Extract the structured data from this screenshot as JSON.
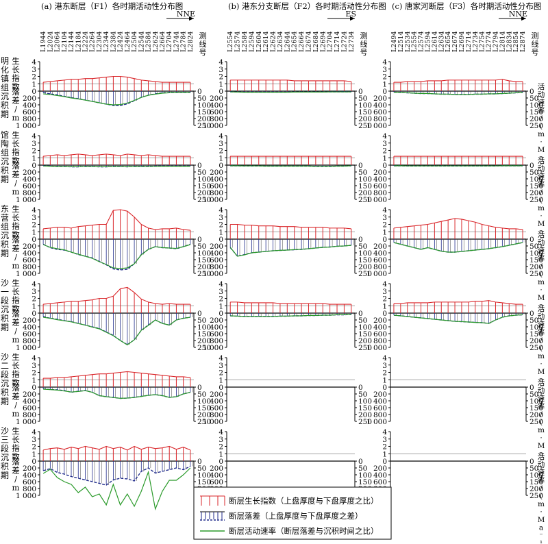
{
  "columns": [
    {
      "title": "(a) 港东断层（F1）各时期活动性分布图",
      "direction": "NNE",
      "lines": [
        "L1944",
        "L2024",
        "L2064",
        "L2104",
        "L2144",
        "L2184",
        "L2224",
        "L2264",
        "L2304",
        "L2344",
        "L2384",
        "L2424",
        "L2464",
        "L2504",
        "L2544",
        "L2584",
        "L2624",
        "L2664",
        "L2704",
        "L2744",
        "L2784",
        "L2824"
      ]
    },
    {
      "title": "(b) 港东分支断层（F2）各时期活动性分布图",
      "direction": "ES",
      "lines": [
        "L2554",
        "L2574",
        "L2584",
        "L2594",
        "L2604",
        "L2614",
        "L2624",
        "L2634",
        "L2644",
        "L2654",
        "L2664",
        "L2674",
        "L2684",
        "L2694",
        "L2704",
        "L2714",
        "L2724",
        "L2734"
      ]
    },
    {
      "title": "(c) 唐家河断层（F3）各时期活动性分布图",
      "direction": "NNE",
      "lines": [
        "L2494",
        "L2514",
        "L2534",
        "L2554",
        "L2574",
        "L2594",
        "L2614",
        "L2634",
        "L2654",
        "L2674",
        "L2694",
        "L2714",
        "L2734",
        "L2754",
        "L2774",
        "L2794",
        "L2814",
        "L2834",
        "L2854",
        "L2874"
      ]
    }
  ],
  "line_label": "测线号",
  "rate_label": "活动速率/(m·Ma⁻¹)",
  "growth_label": "生长指数",
  "throw_label": "落差/m",
  "growth_ticks": [
    "4",
    "3",
    "2",
    "1",
    "0"
  ],
  "throw_ticks": [
    "200",
    "400",
    "600",
    "800",
    "1 000"
  ],
  "rate_ticks": [
    "0",
    "50",
    "100",
    "150",
    "200",
    "250"
  ],
  "periods": [
    {
      "name": "明化镇组沉积期"
    },
    {
      "name": "馆陶组沉积期"
    },
    {
      "name": "东营组沉积期"
    },
    {
      "name": "沙一段沉积期"
    },
    {
      "name": "沙二段沉积期"
    },
    {
      "name": "沙三段沉积期"
    }
  ],
  "legend": [
    "断层生长指数（上盘厚度与下盘厚度之比）",
    "断层落差（上盘厚度与下盘厚度之差）",
    "断层活动速率（断层落差与沉积时间之比）"
  ],
  "colors": {
    "growth": "#d9262a",
    "throw": "#1f2a8a",
    "rate": "#2a9a2a",
    "axis": "#000000",
    "baseline": "#888888"
  },
  "chart_data": {
    "type": "line",
    "units": {
      "growth": "ratio",
      "throw": "m",
      "rate": "m·Ma⁻¹"
    },
    "ylim_growth": [
      0,
      4
    ],
    "ylim_throw": [
      0,
      1000
    ],
    "ylim_rate": [
      0,
      250
    ],
    "panels": [
      [
        {
          "growth": [
            1.2,
            1.3,
            1.4,
            1.5,
            1.6,
            1.6,
            1.7,
            1.7,
            1.8,
            1.9,
            2.0,
            2.0,
            1.9,
            1.7,
            1.5,
            1.4,
            1.3,
            1.2,
            1.2,
            1.2,
            1.2,
            1.2
          ],
          "throw": [
            40,
            80,
            110,
            150,
            190,
            220,
            260,
            300,
            340,
            380,
            420,
            420,
            370,
            280,
            180,
            120,
            80,
            50,
            40,
            40,
            40,
            40
          ],
          "rate": [
            20,
            25,
            32,
            40,
            50,
            57,
            66,
            75,
            85,
            95,
            100,
            98,
            88,
            68,
            46,
            30,
            22,
            15,
            12,
            10,
            10,
            10
          ]
        },
        {
          "growth": [
            1.2,
            1.3,
            1.4,
            1.3,
            1.4,
            1.5,
            1.4,
            1.3,
            1.4,
            1.5,
            1.4,
            1.3,
            1.5,
            1.4,
            1.3,
            1.4,
            1.3,
            1.2,
            1.2,
            1.2,
            1.2,
            1.2
          ],
          "throw": [
            20,
            30,
            40,
            40,
            50,
            50,
            40,
            40,
            50,
            50,
            40,
            40,
            50,
            40,
            40,
            40,
            30,
            30,
            30,
            30,
            30,
            30
          ],
          "rate": [
            6,
            8,
            10,
            11,
            12,
            12,
            11,
            11,
            12,
            12,
            11,
            11,
            12,
            11,
            11,
            11,
            9,
            8,
            8,
            8,
            8,
            8
          ]
        },
        {
          "growth": [
            1.4,
            1.5,
            1.6,
            1.6,
            1.5,
            1.7,
            1.8,
            1.9,
            2.0,
            2.0,
            3.9,
            4.0,
            3.8,
            3.0,
            2.0,
            1.5,
            1.3,
            1.4,
            1.4,
            1.5,
            1.3,
            1.2
          ],
          "throw": [
            150,
            250,
            300,
            320,
            380,
            450,
            500,
            550,
            650,
            750,
            870,
            900,
            880,
            720,
            450,
            300,
            220,
            250,
            260,
            280,
            220,
            150
          ],
          "rate": [
            40,
            60,
            70,
            78,
            95,
            110,
            125,
            140,
            165,
            185,
            210,
            215,
            210,
            180,
            115,
            75,
            55,
            62,
            65,
            68,
            55,
            40
          ]
        },
        {
          "growth": [
            1.2,
            1.3,
            1.4,
            1.5,
            1.6,
            1.6,
            1.7,
            1.8,
            2.0,
            2.0,
            2.3,
            3.3,
            3.5,
            2.8,
            1.9,
            1.5,
            1.3,
            1.2,
            1.3,
            1.2,
            1.2,
            1.2
          ],
          "throw": [
            100,
            150,
            180,
            220,
            250,
            300,
            350,
            400,
            450,
            550,
            650,
            800,
            920,
            780,
            500,
            350,
            200,
            300,
            350,
            200,
            150,
            120
          ],
          "rate": [
            30,
            38,
            48,
            56,
            64,
            76,
            88,
            102,
            115,
            140,
            165,
            200,
            232,
            195,
            125,
            90,
            50,
            75,
            88,
            50,
            38,
            30
          ]
        },
        {
          "growth": [
            1.2,
            1.2,
            1.3,
            1.3,
            1.4,
            1.5,
            1.6,
            1.7,
            1.8,
            1.8,
            1.9,
            2.0,
            2.1,
            2.0,
            1.9,
            1.8,
            1.7,
            1.6,
            1.5,
            1.4,
            1.4,
            1.3
          ],
          "throw": [
            50,
            70,
            80,
            100,
            150,
            120,
            100,
            150,
            250,
            280,
            300,
            330,
            320,
            300,
            270,
            240,
            220,
            250,
            300,
            280,
            200,
            150
          ],
          "rate": [
            15,
            18,
            22,
            28,
            36,
            32,
            26,
            38,
            62,
            70,
            76,
            82,
            80,
            76,
            68,
            60,
            55,
            62,
            75,
            70,
            50,
            38
          ]
        },
        {
          "growth": [
            1.5,
            1.7,
            1.8,
            1.6,
            1.9,
            1.7,
            2.0,
            1.8,
            1.6,
            2.0,
            1.7,
            1.9,
            1.5,
            2.0,
            1.6,
            1.9,
            1.7,
            1.8,
            2.0,
            1.6,
            1.9,
            1.5
          ],
          "throw": [
            280,
            220,
            330,
            380,
            450,
            500,
            550,
            600,
            650,
            700,
            550,
            500,
            520,
            580,
            300,
            200,
            350,
            300,
            250,
            200,
            250,
            150
          ],
          "rate": [
            90,
            60,
            120,
            150,
            170,
            230,
            190,
            260,
            240,
            320,
            170,
            320,
            240,
            330,
            220,
            80,
            350,
            220,
            140,
            140,
            100,
            50
          ]
        }
      ],
      [
        {
          "growth": [
            1.5,
            1.5,
            1.5,
            1.5,
            1.5,
            1.5,
            1.5,
            1.5,
            1.5,
            1.4,
            1.4,
            1.4,
            1.4,
            1.4,
            1.4,
            1.4,
            1.4,
            1.3
          ],
          "throw": [
            20,
            25,
            30,
            30,
            30,
            30,
            30,
            30,
            30,
            25,
            25,
            25,
            25,
            25,
            20,
            20,
            20,
            20
          ],
          "rate": [
            6,
            7,
            8,
            8,
            8,
            8,
            8,
            8,
            8,
            7,
            7,
            7,
            7,
            7,
            6,
            6,
            6,
            6
          ]
        },
        {
          "growth": [
            1.2,
            1.2,
            1.2,
            1.2,
            1.2,
            1.2,
            1.2,
            1.2,
            1.2,
            1.2,
            1.2,
            1.2,
            1.2,
            1.2,
            1.2,
            1.2,
            1.2,
            1.2
          ],
          "throw": [
            20,
            20,
            25,
            25,
            25,
            30,
            30,
            30,
            30,
            30,
            30,
            30,
            40,
            40,
            40,
            30,
            30,
            20
          ],
          "rate": [
            5,
            5,
            6,
            6,
            6,
            7,
            7,
            7,
            7,
            7,
            7,
            7,
            9,
            9,
            9,
            7,
            7,
            5
          ]
        },
        {
          "growth": [
            2.0,
            2.0,
            1.9,
            1.9,
            1.8,
            1.8,
            1.8,
            1.7,
            1.7,
            1.7,
            1.6,
            1.6,
            1.6,
            1.6,
            1.5,
            1.5,
            1.5,
            1.4
          ],
          "throw": [
            250,
            500,
            450,
            400,
            380,
            360,
            340,
            330,
            320,
            310,
            300,
            280,
            260,
            240,
            230,
            210,
            200,
            180
          ],
          "rate": [
            60,
            125,
            115,
            100,
            95,
            90,
            85,
            82,
            80,
            77,
            74,
            70,
            65,
            60,
            58,
            52,
            50,
            45
          ]
        },
        {
          "growth": [
            1.5,
            1.5,
            1.4,
            1.4,
            1.4,
            1.4,
            1.4,
            1.3,
            1.3,
            1.3,
            1.3,
            1.3,
            1.3,
            1.3,
            1.2,
            1.2,
            1.2,
            1.2
          ],
          "throw": [
            80,
            90,
            100,
            100,
            100,
            100,
            100,
            90,
            90,
            80,
            80,
            70,
            70,
            60,
            60,
            50,
            50,
            40
          ],
          "rate": [
            20,
            22,
            25,
            25,
            25,
            25,
            25,
            22,
            22,
            20,
            20,
            17,
            17,
            15,
            15,
            12,
            12,
            10
          ]
        }
      ],
      [
        {
          "growth": [
            1.2,
            1.2,
            1.3,
            1.3,
            1.3,
            1.4,
            1.4,
            1.4,
            1.5,
            1.5,
            1.5,
            1.5,
            1.5,
            1.5,
            1.5,
            1.5,
            1.6,
            1.4,
            1.3,
            1.3
          ],
          "throw": [
            30,
            40,
            50,
            60,
            70,
            70,
            80,
            90,
            90,
            100,
            100,
            100,
            90,
            90,
            80,
            80,
            70,
            60,
            50,
            40
          ],
          "rate": [
            8,
            10,
            12,
            15,
            17,
            17,
            20,
            22,
            22,
            25,
            25,
            25,
            22,
            22,
            20,
            20,
            17,
            15,
            12,
            10
          ]
        },
        {
          "growth": [
            1.2,
            1.2,
            1.2,
            1.2,
            1.2,
            1.2,
            1.2,
            1.2,
            1.2,
            1.2,
            1.2,
            1.2,
            1.2,
            1.2,
            1.2,
            1.2,
            1.2,
            1.2,
            1.2,
            1.2
          ],
          "throw": [
            20,
            20,
            25,
            25,
            25,
            25,
            25,
            25,
            25,
            25,
            25,
            25,
            25,
            25,
            25,
            25,
            20,
            20,
            20,
            20
          ],
          "rate": [
            5,
            5,
            6,
            6,
            6,
            6,
            6,
            6,
            6,
            6,
            6,
            6,
            6,
            6,
            6,
            6,
            5,
            5,
            5,
            5
          ]
        },
        {
          "growth": [
            1.5,
            1.6,
            1.7,
            1.8,
            1.9,
            2.0,
            2.2,
            2.4,
            2.6,
            2.8,
            2.7,
            2.5,
            2.3,
            2.0,
            1.8,
            1.6,
            1.5,
            1.4,
            1.4,
            1.3
          ],
          "throw": [
            100,
            150,
            200,
            250,
            300,
            250,
            300,
            350,
            380,
            380,
            360,
            340,
            320,
            300,
            280,
            250,
            220,
            180,
            140,
            100
          ],
          "rate": [
            25,
            38,
            50,
            62,
            75,
            62,
            75,
            88,
            95,
            95,
            90,
            85,
            80,
            75,
            70,
            62,
            55,
            45,
            35,
            25
          ]
        },
        {
          "growth": [
            1.3,
            1.3,
            1.4,
            1.4,
            1.4,
            1.4,
            1.5,
            1.5,
            1.5,
            1.5,
            1.5,
            1.5,
            1.6,
            1.6,
            1.7,
            1.5,
            1.4,
            1.3,
            1.2,
            1.2
          ],
          "throw": [
            60,
            80,
            100,
            120,
            140,
            160,
            180,
            200,
            220,
            240,
            250,
            260,
            270,
            280,
            300,
            200,
            120,
            80,
            60,
            50
          ],
          "rate": [
            15,
            20,
            25,
            30,
            35,
            40,
            45,
            50,
            55,
            60,
            62,
            65,
            68,
            70,
            75,
            50,
            30,
            20,
            15,
            12
          ]
        }
      ]
    ]
  }
}
